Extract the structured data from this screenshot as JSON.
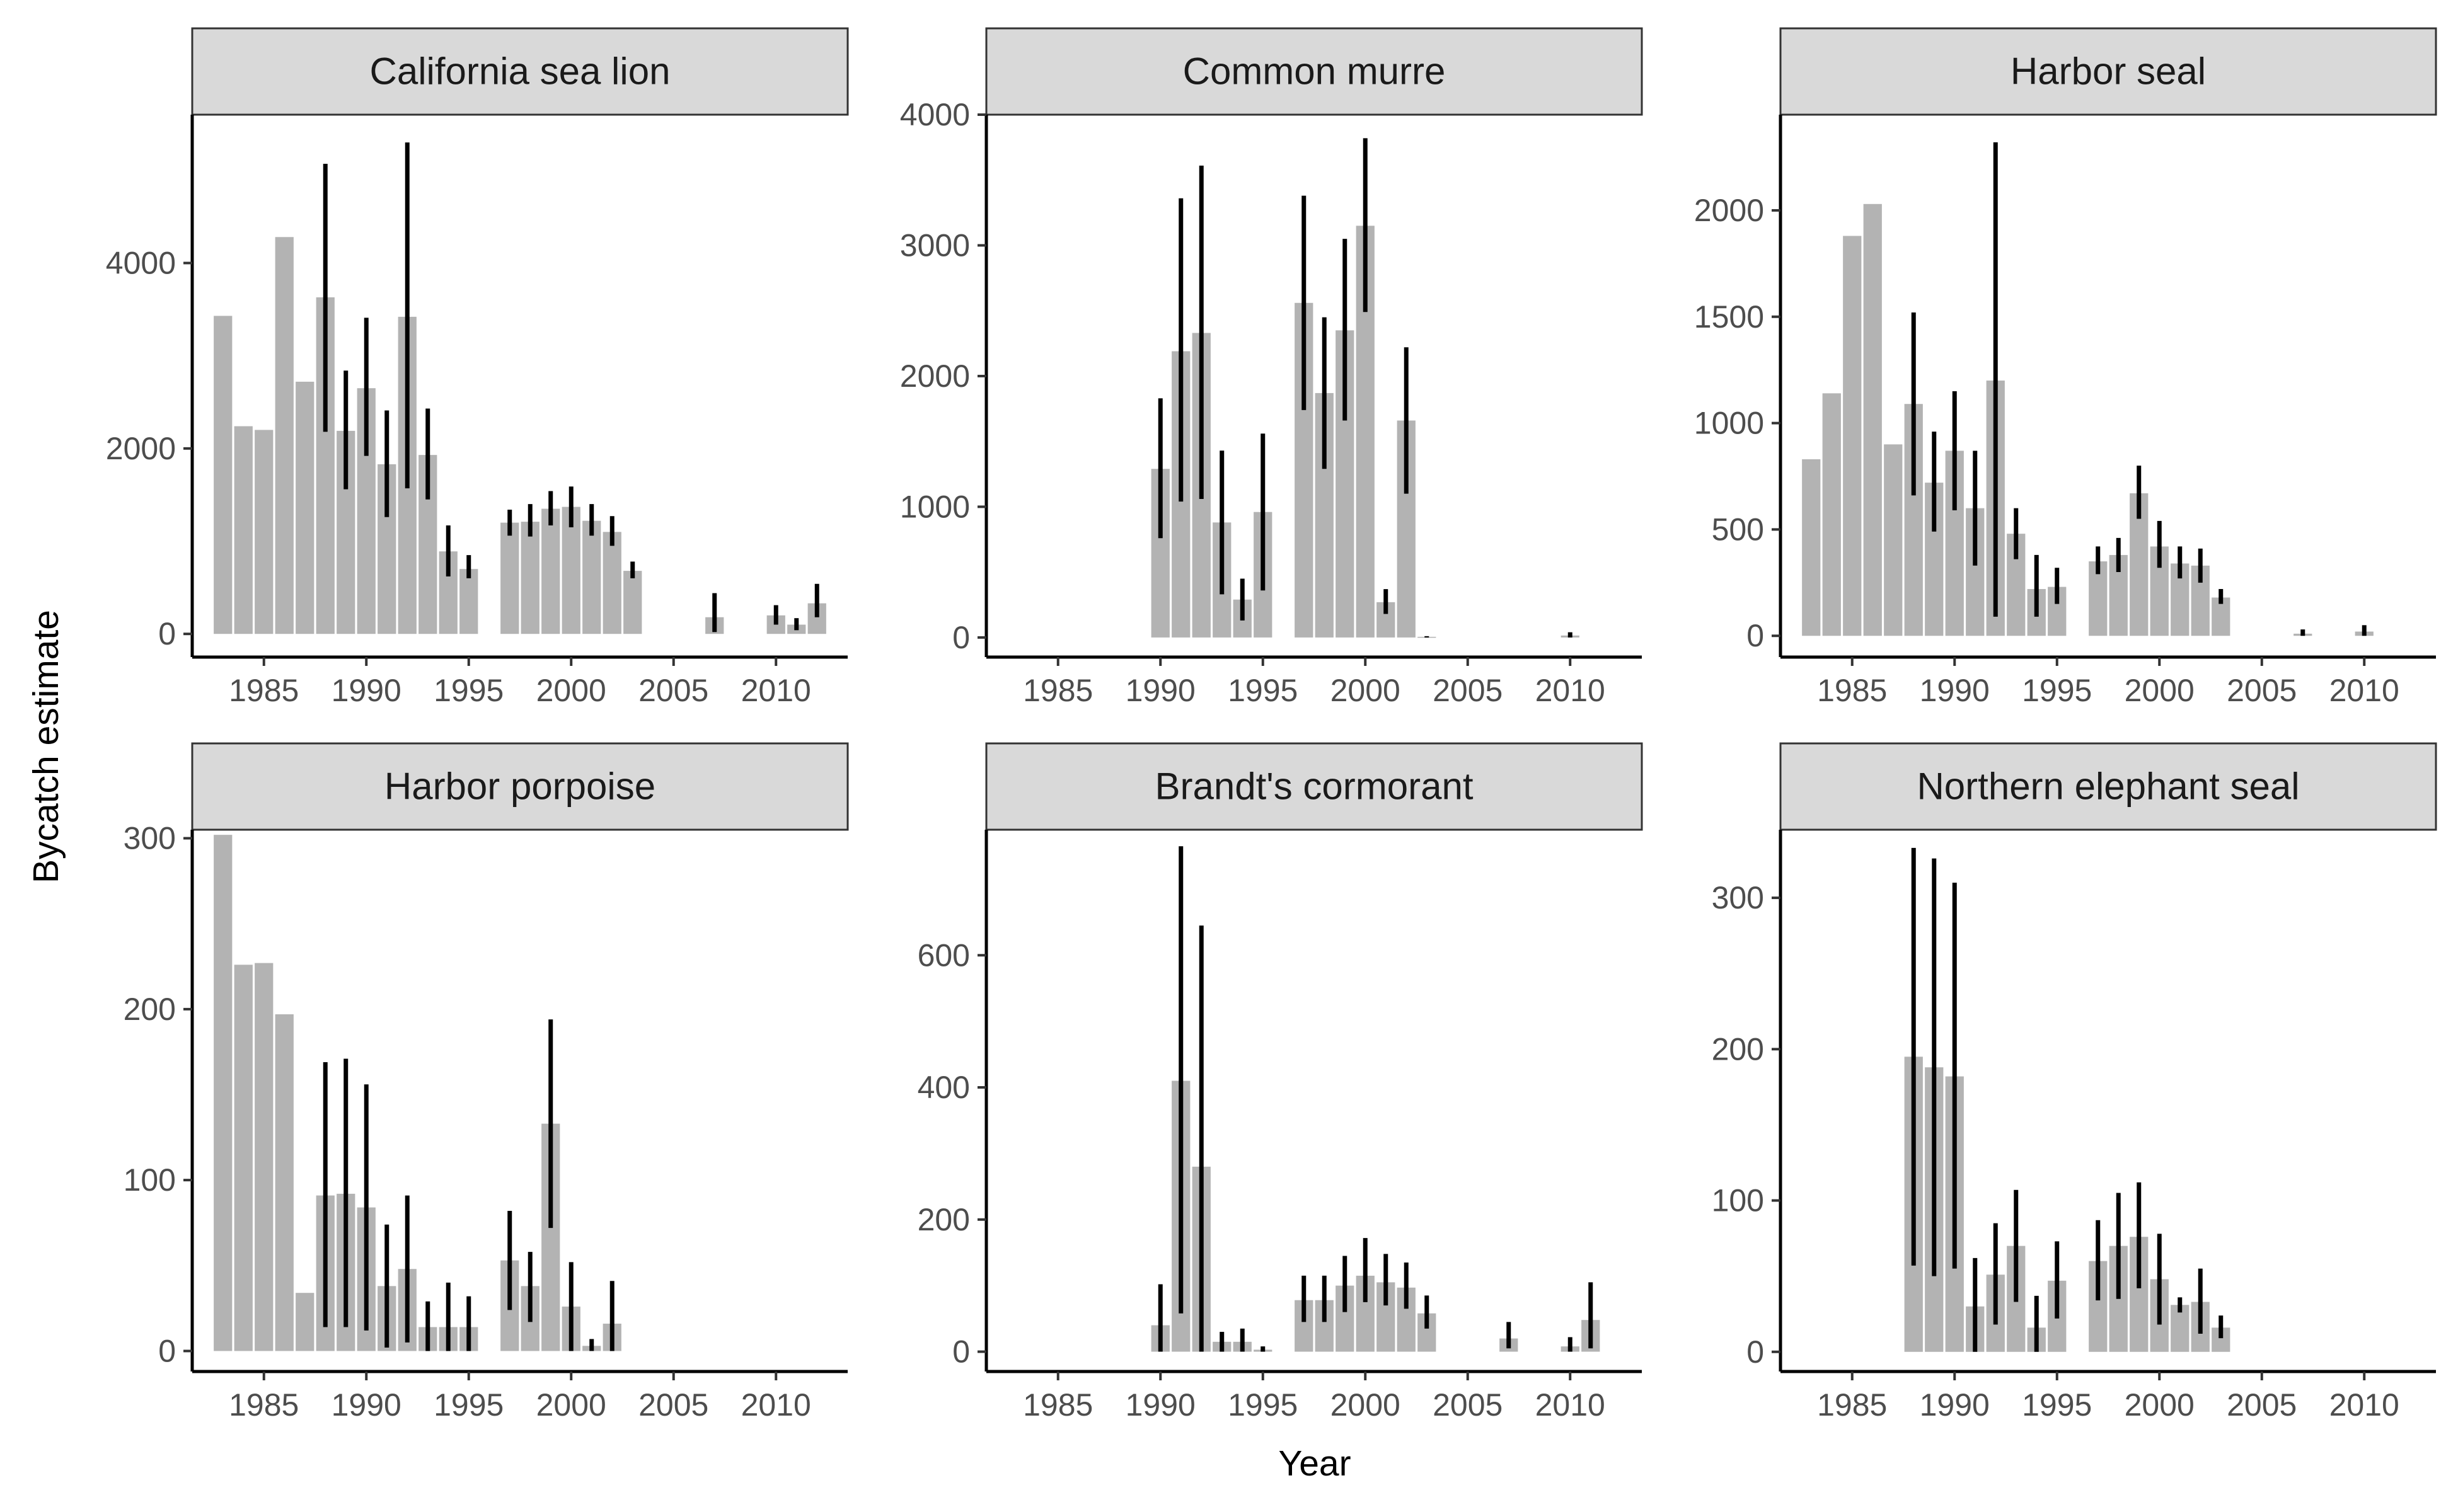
{
  "figure": {
    "xlabel": "Year",
    "ylabel": "Bycatch estimate",
    "colors": {
      "bar": "#b3b3b3",
      "errorbar": "#000000",
      "strip": "#d9d9d9",
      "strip_border": "#333333"
    }
  },
  "chart_data": [
    {
      "type": "bar",
      "title": "California sea lion",
      "xlim": [
        1981.5,
        2013.5
      ],
      "ylim": [
        -250,
        5600
      ],
      "x_ticks": [
        1985,
        1990,
        1995,
        2000,
        2005,
        2010
      ],
      "y_ticks": [
        0,
        2000,
        4000
      ],
      "bars": [
        {
          "year": 1983,
          "value": 3430
        },
        {
          "year": 1984,
          "value": 2240
        },
        {
          "year": 1985,
          "value": 2200
        },
        {
          "year": 1986,
          "value": 4280
        },
        {
          "year": 1987,
          "value": 2720
        },
        {
          "year": 1988,
          "value": 3630,
          "lo": 2180,
          "hi": 5070
        },
        {
          "year": 1989,
          "value": 2190,
          "lo": 1560,
          "hi": 2840
        },
        {
          "year": 1990,
          "value": 2650,
          "lo": 1920,
          "hi": 3410
        },
        {
          "year": 1991,
          "value": 1830,
          "lo": 1260,
          "hi": 2410
        },
        {
          "year": 1992,
          "value": 3420,
          "lo": 1570,
          "hi": 5300
        },
        {
          "year": 1993,
          "value": 1930,
          "lo": 1450,
          "hi": 2430
        },
        {
          "year": 1994,
          "value": 890,
          "lo": 620,
          "hi": 1170
        },
        {
          "year": 1995,
          "value": 700,
          "lo": 600,
          "hi": 850
        },
        {
          "year": 1997,
          "value": 1200,
          "lo": 1060,
          "hi": 1340
        },
        {
          "year": 1998,
          "value": 1210,
          "lo": 1050,
          "hi": 1400
        },
        {
          "year": 1999,
          "value": 1350,
          "lo": 1170,
          "hi": 1540
        },
        {
          "year": 2000,
          "value": 1370,
          "lo": 1150,
          "hi": 1590
        },
        {
          "year": 2001,
          "value": 1220,
          "lo": 1060,
          "hi": 1400
        },
        {
          "year": 2002,
          "value": 1100,
          "lo": 950,
          "hi": 1270
        },
        {
          "year": 2003,
          "value": 680,
          "lo": 600,
          "hi": 780
        },
        {
          "year": 2007,
          "value": 180,
          "lo": 20,
          "hi": 440
        },
        {
          "year": 2010,
          "value": 200,
          "lo": 100,
          "hi": 310
        },
        {
          "year": 2011,
          "value": 100,
          "lo": 40,
          "hi": 170
        },
        {
          "year": 2012,
          "value": 330,
          "lo": 180,
          "hi": 540
        }
      ]
    },
    {
      "type": "bar",
      "title": "Common murre",
      "xlim": [
        1981.5,
        2013.5
      ],
      "ylim": [
        -150,
        4000
      ],
      "x_ticks": [
        1985,
        1990,
        1995,
        2000,
        2005,
        2010
      ],
      "y_ticks": [
        0,
        1000,
        2000,
        3000,
        4000
      ],
      "bars": [
        {
          "year": 1990,
          "value": 1290,
          "lo": 760,
          "hi": 1830
        },
        {
          "year": 1991,
          "value": 2190,
          "lo": 1040,
          "hi": 3360
        },
        {
          "year": 1992,
          "value": 2330,
          "lo": 1060,
          "hi": 3610
        },
        {
          "year": 1993,
          "value": 880,
          "lo": 330,
          "hi": 1430
        },
        {
          "year": 1994,
          "value": 290,
          "lo": 130,
          "hi": 450
        },
        {
          "year": 1995,
          "value": 960,
          "lo": 360,
          "hi": 1560
        },
        {
          "year": 1997,
          "value": 2560,
          "lo": 1740,
          "hi": 3380
        },
        {
          "year": 1998,
          "value": 1870,
          "lo": 1290,
          "hi": 2450
        },
        {
          "year": 1999,
          "value": 2350,
          "lo": 1660,
          "hi": 3050
        },
        {
          "year": 2000,
          "value": 3150,
          "lo": 2490,
          "hi": 3820
        },
        {
          "year": 2001,
          "value": 270,
          "lo": 180,
          "hi": 370
        },
        {
          "year": 2002,
          "value": 1660,
          "lo": 1100,
          "hi": 2220
        },
        {
          "year": 2003,
          "value": 5,
          "lo": 0,
          "hi": 10
        },
        {
          "year": 2010,
          "value": 15,
          "lo": 0,
          "hi": 40
        }
      ]
    },
    {
      "type": "bar",
      "title": "Harbor seal",
      "xlim": [
        1981.5,
        2013.5
      ],
      "ylim": [
        -100,
        2450
      ],
      "x_ticks": [
        1985,
        1990,
        1995,
        2000,
        2005,
        2010
      ],
      "y_ticks": [
        0,
        500,
        1000,
        1500,
        2000
      ],
      "bars": [
        {
          "year": 1983,
          "value": 830
        },
        {
          "year": 1984,
          "value": 1140
        },
        {
          "year": 1985,
          "value": 1880
        },
        {
          "year": 1986,
          "value": 2030
        },
        {
          "year": 1987,
          "value": 900
        },
        {
          "year": 1988,
          "value": 1090,
          "lo": 660,
          "hi": 1520
        },
        {
          "year": 1989,
          "value": 720,
          "lo": 490,
          "hi": 960
        },
        {
          "year": 1990,
          "value": 870,
          "lo": 590,
          "hi": 1150
        },
        {
          "year": 1991,
          "value": 600,
          "lo": 330,
          "hi": 870
        },
        {
          "year": 1992,
          "value": 1200,
          "lo": 90,
          "hi": 2320
        },
        {
          "year": 1993,
          "value": 480,
          "lo": 360,
          "hi": 600
        },
        {
          "year": 1994,
          "value": 220,
          "lo": 90,
          "hi": 380
        },
        {
          "year": 1995,
          "value": 230,
          "lo": 150,
          "hi": 320
        },
        {
          "year": 1997,
          "value": 350,
          "lo": 290,
          "hi": 420
        },
        {
          "year": 1998,
          "value": 380,
          "lo": 300,
          "hi": 460
        },
        {
          "year": 1999,
          "value": 670,
          "lo": 550,
          "hi": 800
        },
        {
          "year": 2000,
          "value": 420,
          "lo": 320,
          "hi": 540
        },
        {
          "year": 2001,
          "value": 340,
          "lo": 270,
          "hi": 420
        },
        {
          "year": 2002,
          "value": 330,
          "lo": 250,
          "hi": 410
        },
        {
          "year": 2003,
          "value": 180,
          "lo": 150,
          "hi": 220
        },
        {
          "year": 2007,
          "value": 10,
          "lo": 0,
          "hi": 30
        },
        {
          "year": 2010,
          "value": 20,
          "lo": 0,
          "hi": 50
        }
      ]
    },
    {
      "type": "bar",
      "title": "Harbor porpoise",
      "xlim": [
        1981.5,
        2013.5
      ],
      "ylim": [
        -12,
        305
      ],
      "x_ticks": [
        1985,
        1990,
        1995,
        2000,
        2005,
        2010
      ],
      "y_ticks": [
        0,
        100,
        200,
        300
      ],
      "bars": [
        {
          "year": 1983,
          "value": 302
        },
        {
          "year": 1984,
          "value": 226
        },
        {
          "year": 1985,
          "value": 227
        },
        {
          "year": 1986,
          "value": 197
        },
        {
          "year": 1987,
          "value": 34
        },
        {
          "year": 1988,
          "value": 91,
          "lo": 14,
          "hi": 169
        },
        {
          "year": 1989,
          "value": 92,
          "lo": 14,
          "hi": 171
        },
        {
          "year": 1990,
          "value": 84,
          "lo": 12,
          "hi": 156
        },
        {
          "year": 1991,
          "value": 38,
          "lo": 2,
          "hi": 74
        },
        {
          "year": 1992,
          "value": 48,
          "lo": 5,
          "hi": 91
        },
        {
          "year": 1993,
          "value": 14,
          "lo": 0,
          "hi": 29
        },
        {
          "year": 1994,
          "value": 14,
          "lo": 0,
          "hi": 40
        },
        {
          "year": 1995,
          "value": 14,
          "lo": 0,
          "hi": 32
        },
        {
          "year": 1997,
          "value": 53,
          "lo": 24,
          "hi": 82
        },
        {
          "year": 1998,
          "value": 38,
          "lo": 17,
          "hi": 58
        },
        {
          "year": 1999,
          "value": 133,
          "lo": 72,
          "hi": 194
        },
        {
          "year": 2000,
          "value": 26,
          "lo": 0,
          "hi": 52
        },
        {
          "year": 2001,
          "value": 3,
          "lo": 0,
          "hi": 7
        },
        {
          "year": 2002,
          "value": 16,
          "lo": 0,
          "hi": 41
        }
      ]
    },
    {
      "type": "bar",
      "title": "Brandt's cormorant",
      "xlim": [
        1981.5,
        2013.5
      ],
      "ylim": [
        -30,
        790
      ],
      "x_ticks": [
        1985,
        1990,
        1995,
        2000,
        2005,
        2010
      ],
      "y_ticks": [
        0,
        200,
        400,
        600
      ],
      "bars": [
        {
          "year": 1990,
          "value": 40,
          "lo": 0,
          "hi": 102
        },
        {
          "year": 1991,
          "value": 410,
          "lo": 58,
          "hi": 765
        },
        {
          "year": 1992,
          "value": 280,
          "lo": 0,
          "hi": 645
        },
        {
          "year": 1993,
          "value": 15,
          "lo": 0,
          "hi": 30
        },
        {
          "year": 1994,
          "value": 15,
          "lo": 0,
          "hi": 35
        },
        {
          "year": 1995,
          "value": 3,
          "lo": 0,
          "hi": 8
        },
        {
          "year": 1997,
          "value": 78,
          "lo": 45,
          "hi": 115
        },
        {
          "year": 1998,
          "value": 78,
          "lo": 45,
          "hi": 115
        },
        {
          "year": 1999,
          "value": 100,
          "lo": 60,
          "hi": 145
        },
        {
          "year": 2000,
          "value": 115,
          "lo": 75,
          "hi": 172
        },
        {
          "year": 2001,
          "value": 105,
          "lo": 70,
          "hi": 148
        },
        {
          "year": 2002,
          "value": 97,
          "lo": 65,
          "hi": 135
        },
        {
          "year": 2003,
          "value": 58,
          "lo": 35,
          "hi": 85
        },
        {
          "year": 2007,
          "value": 20,
          "lo": 5,
          "hi": 45
        },
        {
          "year": 2010,
          "value": 8,
          "lo": 0,
          "hi": 22
        },
        {
          "year": 2011,
          "value": 48,
          "lo": 5,
          "hi": 105
        }
      ]
    },
    {
      "type": "bar",
      "title": "Northern elephant seal",
      "xlim": [
        1981.5,
        2013.5
      ],
      "ylim": [
        -13,
        345
      ],
      "x_ticks": [
        1985,
        1990,
        1995,
        2000,
        2005,
        2010
      ],
      "y_ticks": [
        0,
        100,
        200,
        300
      ],
      "bars": [
        {
          "year": 1988,
          "value": 195,
          "lo": 57,
          "hi": 333
        },
        {
          "year": 1989,
          "value": 188,
          "lo": 50,
          "hi": 326
        },
        {
          "year": 1990,
          "value": 182,
          "lo": 55,
          "hi": 310
        },
        {
          "year": 1991,
          "value": 30,
          "lo": 0,
          "hi": 62
        },
        {
          "year": 1992,
          "value": 51,
          "lo": 18,
          "hi": 85
        },
        {
          "year": 1993,
          "value": 70,
          "lo": 33,
          "hi": 107
        },
        {
          "year": 1994,
          "value": 16,
          "lo": 0,
          "hi": 37
        },
        {
          "year": 1995,
          "value": 47,
          "lo": 22,
          "hi": 73
        },
        {
          "year": 1997,
          "value": 60,
          "lo": 34,
          "hi": 87
        },
        {
          "year": 1998,
          "value": 70,
          "lo": 35,
          "hi": 105
        },
        {
          "year": 1999,
          "value": 76,
          "lo": 42,
          "hi": 112
        },
        {
          "year": 2000,
          "value": 48,
          "lo": 18,
          "hi": 78
        },
        {
          "year": 2001,
          "value": 31,
          "lo": 26,
          "hi": 36
        },
        {
          "year": 2002,
          "value": 33,
          "lo": 12,
          "hi": 55
        },
        {
          "year": 2003,
          "value": 16,
          "lo": 9,
          "hi": 24
        }
      ]
    }
  ]
}
